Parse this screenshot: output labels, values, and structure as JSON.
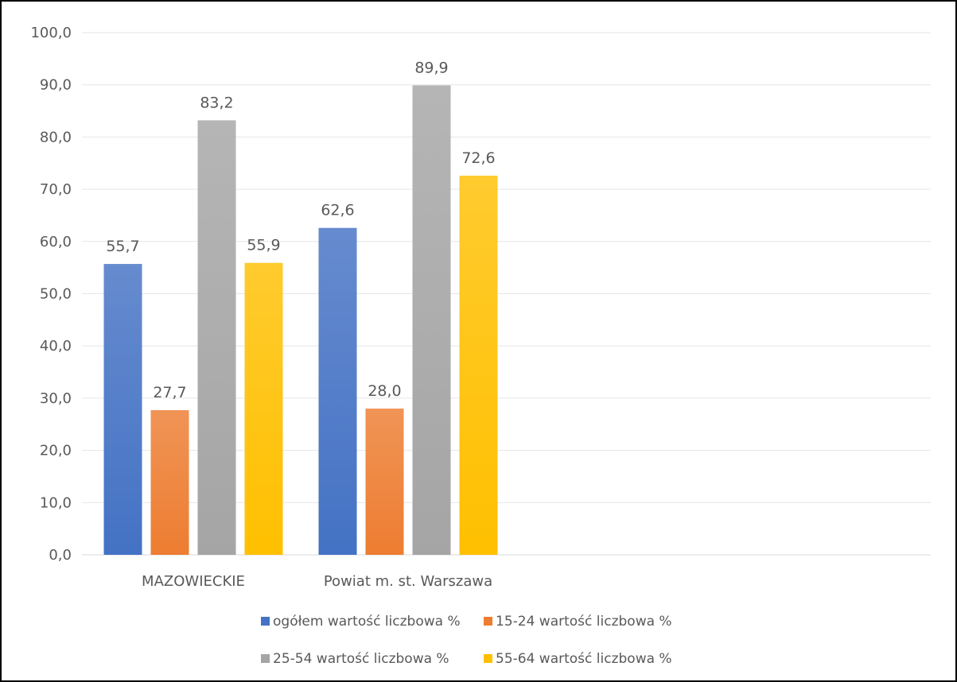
{
  "chart_data": {
    "type": "bar",
    "categories": [
      "MAZOWIECKIE",
      "Powiat m. st. Warszawa"
    ],
    "series": [
      {
        "name": "ogółem wartość liczbowa %",
        "values": [
          55.7,
          62.6
        ],
        "color": "#4472C4",
        "labels": [
          "55,7",
          "62,6"
        ]
      },
      {
        "name": "15-24 wartość liczbowa %",
        "values": [
          27.7,
          28.0
        ],
        "color": "#ED7D31",
        "labels": [
          "27,7",
          "28,0"
        ]
      },
      {
        "name": "25-54 wartość liczbowa %",
        "values": [
          83.2,
          89.9
        ],
        "color": "#A5A5A5",
        "labels": [
          "83,2",
          "89,9"
        ]
      },
      {
        "name": "55-64 wartość liczbowa %",
        "values": [
          55.9,
          72.6
        ],
        "color": "#FFC000",
        "labels": [
          "55,9",
          "72,6"
        ]
      }
    ],
    "ylim": [
      0,
      100
    ],
    "yticks": [
      "0,0",
      "10,0",
      "20,0",
      "30,0",
      "40,0",
      "50,0",
      "60,0",
      "70,0",
      "80,0",
      "90,0",
      "100,0"
    ],
    "grid": true,
    "legend": "bottom"
  }
}
